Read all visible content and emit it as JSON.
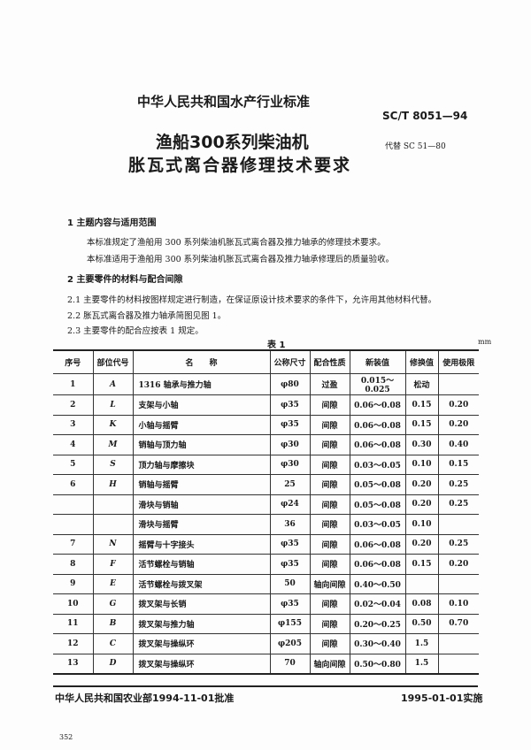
{
  "header": {
    "org": "中华人民共和国水产行业标准",
    "code": "SC/T 8051—94",
    "title_line1": "渔船300系列柴油机",
    "title_line2": "胀瓦式离合器修理技术要求",
    "replaces": "代替 SC 51—80"
  },
  "sections": [
    {
      "heading": "1  主题内容与适用范围",
      "paragraphs": [
        "本标准规定了渔船用 300 系列柴油机胀瓦式离合器及推力轴承的修理技术要求。",
        "本标准适用于渔船用 300 系列柴油机胀瓦式离合器及推力轴承修理后的质量验收。"
      ]
    },
    {
      "heading": "2  主要零件的材料与配合间隙",
      "paragraphs": [
        "2.1  主要零件的材料按图样规定进行制造，在保证原设计技术要求的条件下，允许用其他材料代替。",
        "2.2  胀瓦式离合器及推力轴承简图见图 1。",
        "2.3  主要零件的配合应按表 1 规定。"
      ]
    }
  ],
  "table": {
    "caption": "表 1",
    "unit": "mm",
    "headers": [
      "序号",
      "部位代号",
      "名　　称",
      "公称尺寸",
      "配合性质",
      "新装值",
      "修换值",
      "使用极限"
    ],
    "rows": [
      [
        "1",
        "A",
        "1316 轴承与推力轴",
        "φ80",
        "过盈",
        "0.015～0.025",
        "松动",
        ""
      ],
      [
        "2",
        "L",
        "支架与小轴",
        "φ35",
        "间隙",
        "0.06～0.08",
        "0.15",
        "0.20"
      ],
      [
        "3",
        "K",
        "小轴与摇臂",
        "φ35",
        "间隙",
        "0.06～0.08",
        "0.15",
        "0.20"
      ],
      [
        "4",
        "M",
        "销轴与顶力轴",
        "φ30",
        "间隙",
        "0.06～0.08",
        "0.30",
        "0.40"
      ],
      [
        "5",
        "S",
        "顶力轴与摩擦块",
        "φ30",
        "间隙",
        "0.03～0.05",
        "0.10",
        "0.15"
      ],
      [
        "6",
        "H",
        "销轴与摇臂",
        "25",
        "间隙",
        "0.05～0.08",
        "0.20",
        "0.25"
      ],
      [
        "",
        "",
        "滑块与销轴",
        "φ24",
        "间隙",
        "0.05～0.08",
        "0.20",
        "0.25"
      ],
      [
        "",
        "",
        "滑块与摇臂",
        "36",
        "间隙",
        "0.03～0.05",
        "0.10",
        ""
      ],
      [
        "7",
        "N",
        "摇臂与十字接头",
        "φ35",
        "间隙",
        "0.06～0.08",
        "0.20",
        "0.25"
      ],
      [
        "8",
        "F",
        "活节螺栓与销轴",
        "φ35",
        "间隙",
        "0.06～0.08",
        "0.15",
        "0.20"
      ],
      [
        "9",
        "E",
        "活节螺栓与拨叉架",
        "50",
        "轴向间隙",
        "0.40～0.50",
        "",
        ""
      ],
      [
        "10",
        "G",
        "拨叉架与长销",
        "φ35",
        "间隙",
        "0.02～0.04",
        "0.08",
        "0.10"
      ],
      [
        "11",
        "B",
        "拨叉架与推力轴",
        "φ155",
        "间隙",
        "0.20～0.25",
        "0.50",
        "0.70"
      ],
      [
        "12",
        "C",
        "拨叉架与操纵环",
        "φ205",
        "间隙",
        "0.30～0.40",
        "1.5",
        ""
      ],
      [
        "13",
        "D",
        "拨叉架与操纵环",
        "70",
        "轴向间隙",
        "0.50～0.80",
        "1.5",
        ""
      ]
    ]
  },
  "footer": {
    "approved": "中华人民共和国农业部1994-11-01批准",
    "effective": "1995-01-01实施",
    "page_number": "352"
  }
}
